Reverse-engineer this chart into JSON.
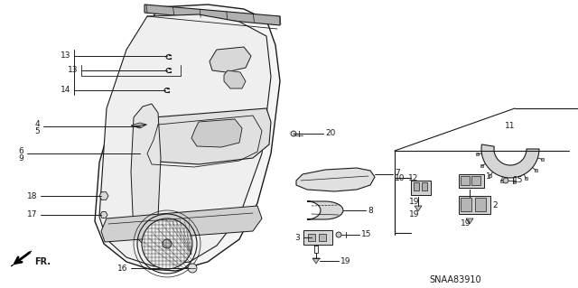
{
  "bg_color": "#ffffff",
  "line_color": "#1a1a1a",
  "diagram_label": "SNAA83910",
  "figsize": [
    6.4,
    3.19
  ],
  "dpi": 100
}
